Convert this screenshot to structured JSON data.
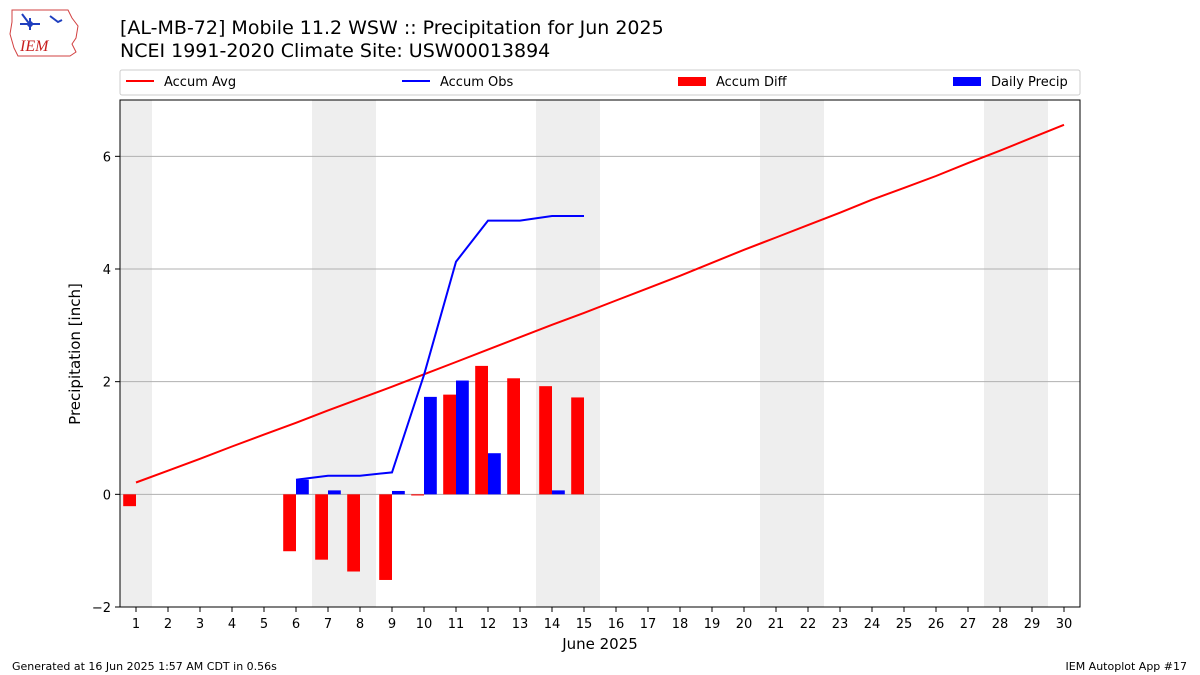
{
  "title_line1": "[AL-MB-72] Mobile 11.2 WSW :: Precipitation for Jun 2025",
  "title_line2": "NCEI 1991-2020 Climate Site: USW00013894",
  "logo": {
    "text": "IEM"
  },
  "footer": {
    "left": "Generated at 16 Jun 2025 1:57 AM CDT in 0.56s",
    "right": "IEM Autoplot App #17"
  },
  "colors": {
    "accum_avg": "#ff0000",
    "accum_obs": "#0000ff",
    "accum_diff": "#ff0000",
    "daily_precip": "#0000ff",
    "weekend_shade": "#eeeeee",
    "grid": "#b0b0b0"
  },
  "chart_data": {
    "type": "bar",
    "xlabel": "June 2025",
    "ylabel": "Precipitation [inch]",
    "ylim": [
      -2.0,
      7.0
    ],
    "yticks": [
      -2,
      0,
      2,
      4,
      6
    ],
    "xlim": [
      0.5,
      30.5
    ],
    "x": [
      1,
      2,
      3,
      4,
      5,
      6,
      7,
      8,
      9,
      10,
      11,
      12,
      13,
      14,
      15,
      16,
      17,
      18,
      19,
      20,
      21,
      22,
      23,
      24,
      25,
      26,
      27,
      28,
      29,
      30
    ],
    "grid": "horizontal",
    "legend_placement": "top",
    "weekend_shading_days": [
      1,
      7,
      8,
      14,
      15,
      21,
      22,
      28,
      29
    ],
    "series": [
      {
        "name": "Accum Avg",
        "kind": "line",
        "x": [
          1,
          2,
          3,
          4,
          5,
          6,
          7,
          8,
          9,
          10,
          11,
          12,
          13,
          14,
          15,
          16,
          17,
          18,
          19,
          20,
          21,
          22,
          23,
          24,
          25,
          26,
          27,
          28,
          29,
          30
        ],
        "values": [
          0.21,
          0.42,
          0.63,
          0.85,
          1.06,
          1.27,
          1.49,
          1.7,
          1.91,
          2.13,
          2.35,
          2.57,
          2.79,
          3.01,
          3.22,
          3.44,
          3.66,
          3.88,
          4.11,
          4.34,
          4.56,
          4.78,
          5.0,
          5.23,
          5.44,
          5.65,
          5.88,
          6.1,
          6.33,
          6.56
        ]
      },
      {
        "name": "Accum Obs",
        "kind": "line",
        "x": [
          6,
          7,
          8,
          9,
          10,
          11,
          12,
          13,
          14,
          15
        ],
        "values": [
          0.26,
          0.33,
          0.33,
          0.39,
          2.12,
          4.13,
          4.86,
          4.86,
          4.94,
          4.94
        ]
      },
      {
        "name": "Accum Diff",
        "kind": "bar",
        "x": [
          1,
          6,
          7,
          8,
          9,
          10,
          11,
          12,
          13,
          14,
          15
        ],
        "values": [
          -0.21,
          -1.01,
          -1.16,
          -1.37,
          -1.52,
          -0.02,
          1.77,
          2.28,
          2.06,
          1.92,
          1.72
        ]
      },
      {
        "name": "Daily Precip",
        "kind": "bar",
        "x": [
          6,
          7,
          8,
          9,
          10,
          11,
          12,
          13,
          14,
          15
        ],
        "values": [
          0.26,
          0.07,
          0.0,
          0.06,
          1.73,
          2.02,
          0.73,
          0.0,
          0.07,
          0.0
        ]
      }
    ]
  }
}
